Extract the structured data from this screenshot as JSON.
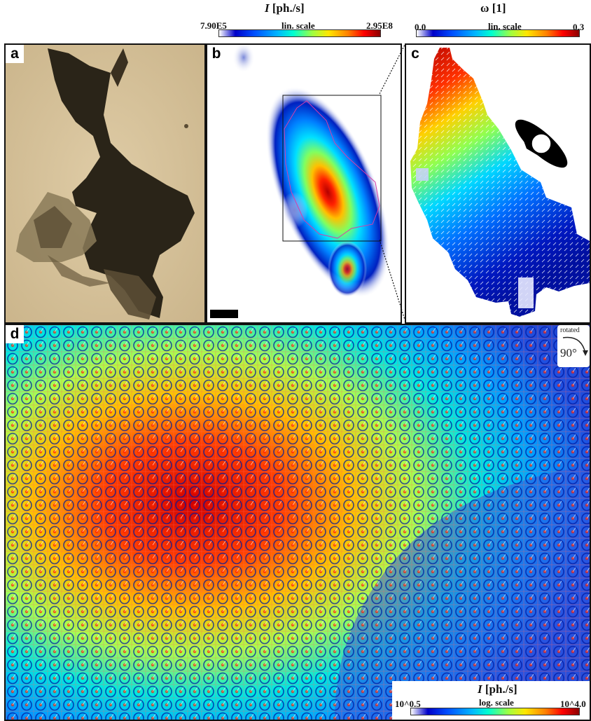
{
  "colorbar_top_left": {
    "symbol": "I",
    "unit": "[ph./s]",
    "min": "7.90E5",
    "scale": "lin. scale",
    "max": "2.95E8"
  },
  "colorbar_top_right": {
    "symbol": "ω",
    "unit": "[1]",
    "min": "0.0",
    "scale": "lin. scale",
    "max": "0.3"
  },
  "colorbar_bottom": {
    "symbol": "I",
    "unit": "[ph./s]",
    "min": "10^0.5",
    "scale": "log. scale",
    "max": "10^4.0"
  },
  "panels": {
    "a": "a",
    "b": "b",
    "c": "c",
    "d": "d"
  },
  "rotation": {
    "label": "rotated",
    "angle": "90°"
  },
  "colors": {
    "background_photo": "#d9c49c",
    "cell_dark": "#2a2418",
    "frame": "#111111",
    "grid_line": "#e06060",
    "roi_outline": "#d63fa8"
  },
  "icons": {
    "orientation": "ellipse-orientation-icon",
    "rotate": "rotate-arrow-icon",
    "scale_bar": "scale-bar"
  }
}
